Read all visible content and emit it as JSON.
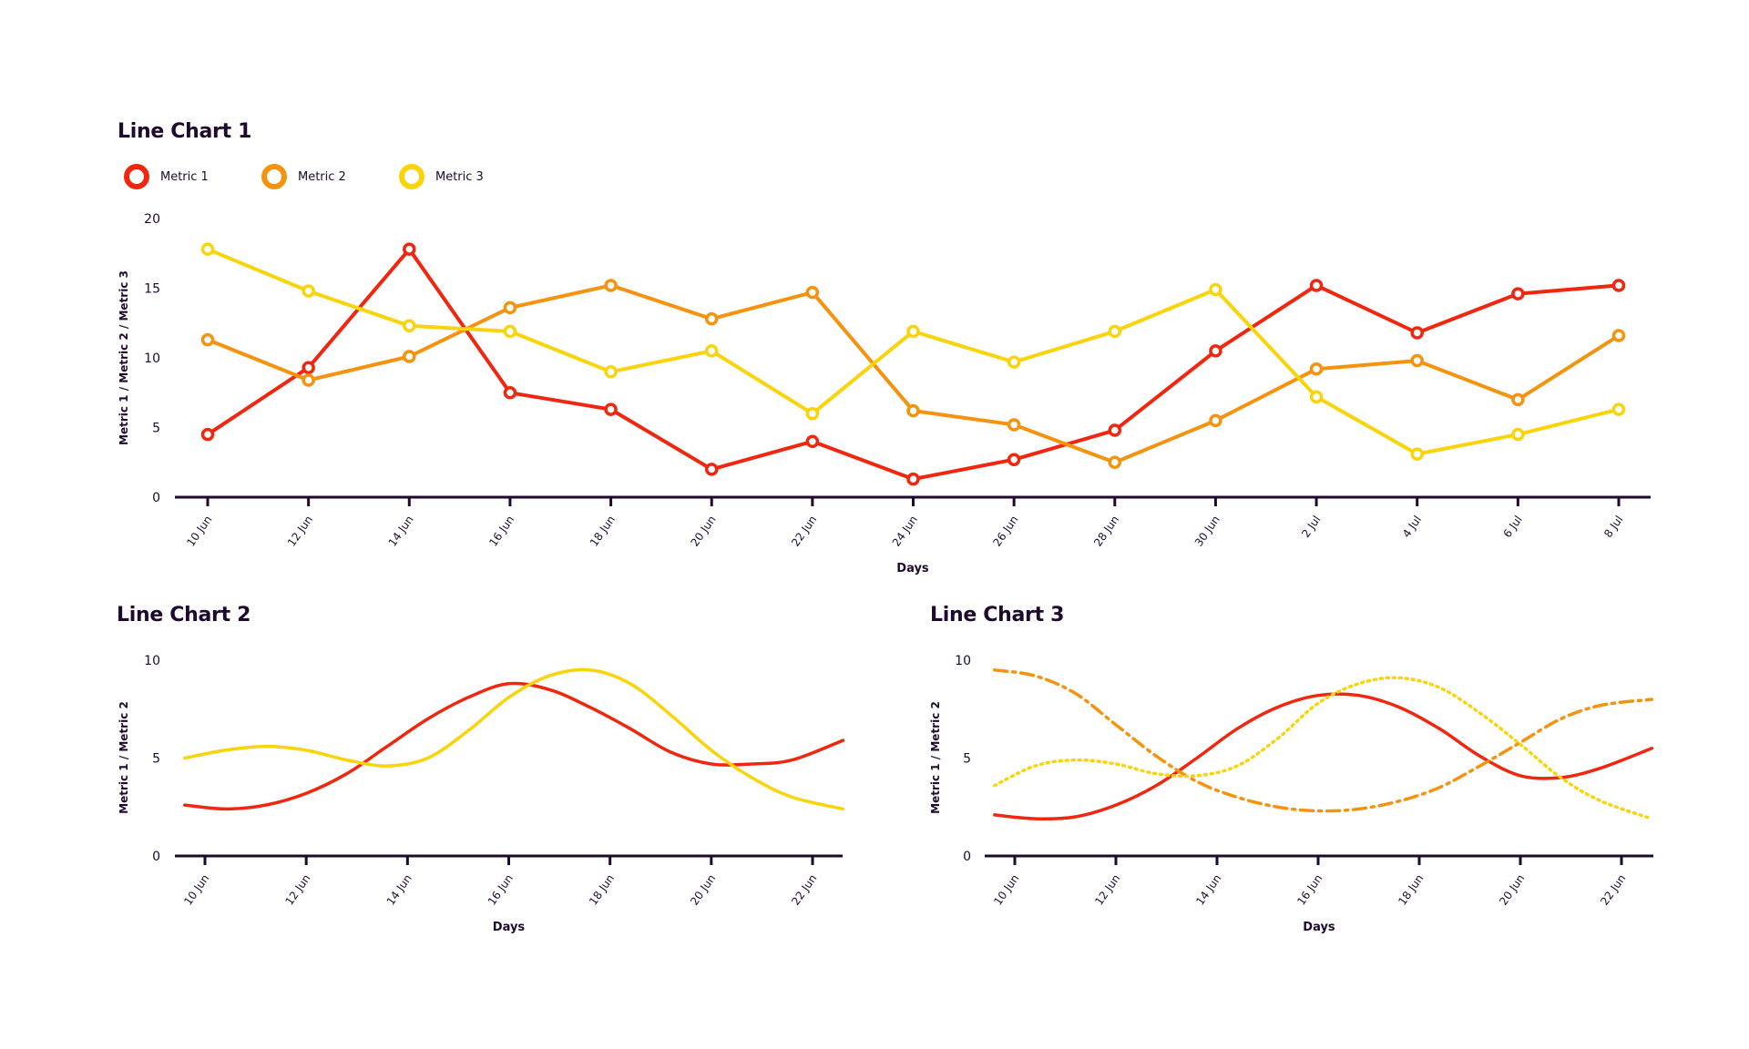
{
  "colors": {
    "metric1": "#f0260f",
    "metric2": "#f5930f",
    "metric3": "#fad40a",
    "axis": "#1e0a2e"
  },
  "legend": [
    {
      "name": "Metric 1",
      "color": "#f0260f"
    },
    {
      "name": "Metric 2",
      "color": "#f5930f"
    },
    {
      "name": "Metric 3",
      "color": "#fad40a"
    }
  ],
  "chart_data": [
    {
      "type": "line",
      "title": "Line Chart 1",
      "xlabel": "Days",
      "ylabel": "Metric 1 / Metric 2 / Metric 3",
      "ylim": [
        0,
        20
      ],
      "yticks": [
        0,
        5,
        10,
        15,
        20
      ],
      "markers": true,
      "grid": false,
      "legend_position": "top-left",
      "categories": [
        "10 Jun",
        "12 Jun",
        "14 Jun",
        "16 Jun",
        "18 Jun",
        "20 Jun",
        "22 Jun",
        "24 Jun",
        "26 Jun",
        "28 Jun",
        "30 Jun",
        "2 Jul",
        "4 Jul",
        "6 Jul",
        "8 Jul"
      ],
      "series": [
        {
          "name": "Metric 1",
          "color": "#f0260f",
          "values": [
            4.5,
            9.3,
            17.8,
            7.5,
            6.3,
            2.0,
            4.0,
            1.3,
            2.7,
            4.8,
            10.5,
            15.2,
            11.8,
            14.6,
            15.2
          ]
        },
        {
          "name": "Metric 2",
          "color": "#f5930f",
          "values": [
            11.3,
            8.4,
            10.1,
            13.6,
            15.2,
            12.8,
            14.7,
            6.2,
            5.2,
            2.5,
            5.5,
            9.2,
            9.8,
            7.0,
            11.6
          ]
        },
        {
          "name": "Metric 3",
          "color": "#fad40a",
          "values": [
            17.8,
            14.8,
            12.3,
            11.9,
            9.0,
            10.5,
            6.0,
            11.9,
            9.7,
            11.9,
            14.9,
            7.2,
            3.1,
            4.5,
            6.3
          ]
        }
      ]
    },
    {
      "type": "line",
      "title": "Line Chart 2",
      "xlabel": "Days",
      "ylabel": "Metric 1 / Metric 2",
      "ylim": [
        0,
        10
      ],
      "yticks": [
        0,
        5,
        10
      ],
      "smooth": true,
      "grid": false,
      "categories": [
        "10 Jun",
        "12 Jun",
        "14 Jun",
        "16 Jun",
        "18 Jun",
        "20 Jun",
        "22 Jun"
      ],
      "x": [
        9.6,
        10.4,
        11.2,
        12.0,
        12.8,
        13.6,
        14.4,
        15.2,
        16.0,
        16.8,
        17.6,
        18.4,
        19.2,
        20.0,
        20.8,
        21.6,
        22.6
      ],
      "series": [
        {
          "name": "Metric 1",
          "color": "#f0260f",
          "dash": "solid",
          "values": [
            2.6,
            2.4,
            2.6,
            3.2,
            4.2,
            5.6,
            7.0,
            8.1,
            8.8,
            8.5,
            7.6,
            6.5,
            5.3,
            4.7,
            4.7,
            4.9,
            5.9
          ]
        },
        {
          "name": "Metric 2",
          "color": "#fad40a",
          "dash": "solid",
          "values": [
            5.0,
            5.4,
            5.6,
            5.4,
            4.9,
            4.6,
            5.0,
            6.4,
            8.1,
            9.2,
            9.5,
            8.8,
            7.2,
            5.4,
            4.0,
            3.0,
            2.4
          ]
        }
      ]
    },
    {
      "type": "line",
      "title": "Line Chart 3",
      "xlabel": "Days",
      "ylabel": "Metric 1 / Metric 2",
      "ylim": [
        0,
        10
      ],
      "yticks": [
        0,
        5,
        10
      ],
      "smooth": true,
      "grid": false,
      "categories": [
        "10 Jun",
        "12 Jun",
        "14 Jun",
        "16 Jun",
        "18 Jun",
        "20 Jun",
        "22 Jun"
      ],
      "x": [
        9.6,
        10.4,
        11.2,
        12.0,
        12.8,
        13.6,
        14.4,
        15.2,
        16.0,
        16.8,
        17.6,
        18.4,
        19.2,
        20.0,
        20.8,
        21.6,
        22.6
      ],
      "series": [
        {
          "name": "Metric 1",
          "color": "#f0260f",
          "dash": "solid",
          "values": [
            2.1,
            1.9,
            2.0,
            2.6,
            3.6,
            5.0,
            6.5,
            7.6,
            8.2,
            8.2,
            7.6,
            6.5,
            5.1,
            4.1,
            4.0,
            4.5,
            5.5
          ]
        },
        {
          "name": "Metric 2",
          "color": "#f5930f",
          "dash": "dashdot",
          "values": [
            9.5,
            9.2,
            8.3,
            6.7,
            5.1,
            3.8,
            3.0,
            2.5,
            2.3,
            2.4,
            2.8,
            3.5,
            4.6,
            5.8,
            7.0,
            7.7,
            8.0
          ]
        },
        {
          "name": "Metric 3",
          "color": "#fad40a",
          "dash": "dotted",
          "values": [
            3.6,
            4.6,
            4.9,
            4.7,
            4.2,
            4.1,
            4.6,
            6.0,
            7.8,
            8.8,
            9.1,
            8.6,
            7.3,
            5.7,
            4.0,
            2.8,
            1.9
          ]
        }
      ]
    }
  ]
}
